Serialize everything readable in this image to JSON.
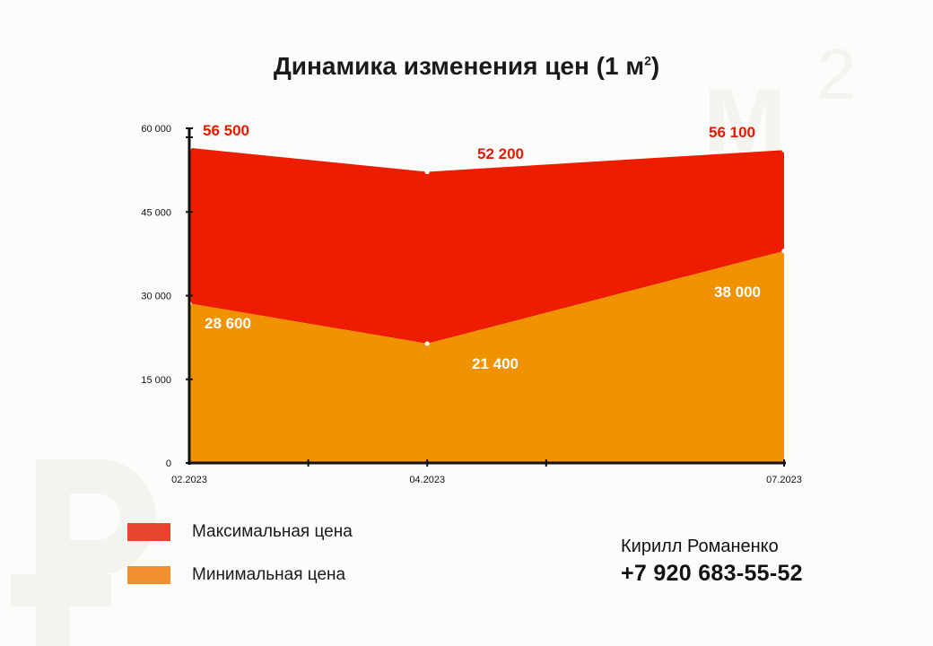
{
  "chart_data": {
    "type": "area",
    "title": "Динамика изменения цен (1 м",
    "title_sup": "2",
    "categories": [
      "02.2023",
      "04.2023",
      "07.2023"
    ],
    "y_ticks": [
      "0",
      "15 000",
      "30 000",
      "45 000",
      "60 000"
    ],
    "ylim": [
      0,
      60000
    ],
    "grid": false,
    "series": [
      {
        "name": "Максимальная цена",
        "values": [
          56500,
          52200,
          56100
        ],
        "labels": [
          "56 500",
          "52 200",
          "56 100"
        ],
        "color": "#ee1c00"
      },
      {
        "name": "Минимальная цена",
        "values": [
          28600,
          21400,
          38000
        ],
        "labels": [
          "28 600",
          "21 400",
          "38 000"
        ],
        "color": "#f19200"
      }
    ],
    "legend_position": "bottom-left"
  },
  "legend": {
    "items": [
      {
        "label": "Максимальная цена",
        "color": "#e8452f"
      },
      {
        "label": "Минимальная цена",
        "color": "#f08f2e"
      }
    ]
  },
  "contact": {
    "name": "Кирилл Романенко",
    "phone": "+7 920 683-55-52"
  },
  "watermarks": {
    "unit_symbol": "м",
    "unit_sup": "2",
    "currency_icon": "ruble-icon"
  }
}
